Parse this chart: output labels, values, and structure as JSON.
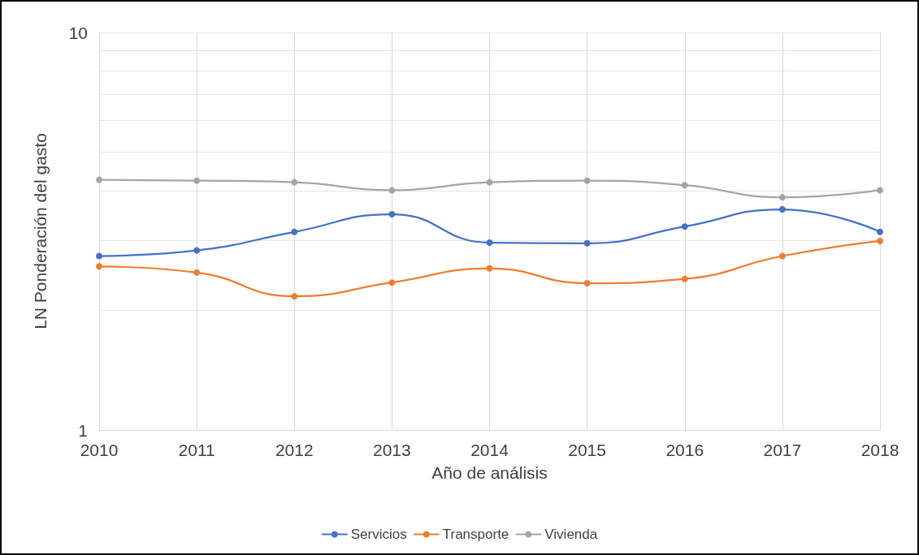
{
  "chart_data": {
    "type": "line",
    "xlabel": "Año de análisis",
    "ylabel": "LN Ponderación del gasto",
    "categories": [
      "2010",
      "2011",
      "2012",
      "2013",
      "2014",
      "2015",
      "2016",
      "2017",
      "2018"
    ],
    "series": [
      {
        "name": "Servicios",
        "color": "#4472c4",
        "values": [
          2.74,
          2.83,
          3.15,
          3.49,
          2.96,
          2.95,
          3.25,
          3.59,
          3.15
        ]
      },
      {
        "name": "Transporte",
        "color": "#ed7d31",
        "values": [
          2.58,
          2.49,
          2.17,
          2.35,
          2.55,
          2.34,
          2.4,
          2.74,
          2.99
        ]
      },
      {
        "name": "Vivienda",
        "color": "#a5a5a5",
        "values": [
          4.26,
          4.24,
          4.2,
          4.01,
          4.2,
          4.24,
          4.13,
          3.85,
          4.01
        ]
      }
    ],
    "log": "y",
    "ylim": [
      1,
      10
    ],
    "yticks": [
      1,
      {
        "value": 2,
        "label": null
      },
      {
        "value": 3,
        "label": null
      },
      {
        "value": 4,
        "label": null
      },
      {
        "value": 5,
        "label": null
      },
      {
        "value": 6,
        "label": null
      },
      {
        "value": 7,
        "label": null
      },
      {
        "value": 8,
        "label": null
      },
      {
        "value": 9,
        "label": null
      },
      10
    ],
    "grid": true,
    "legend": "bottom",
    "marker": "circle",
    "line_style": "solid"
  }
}
